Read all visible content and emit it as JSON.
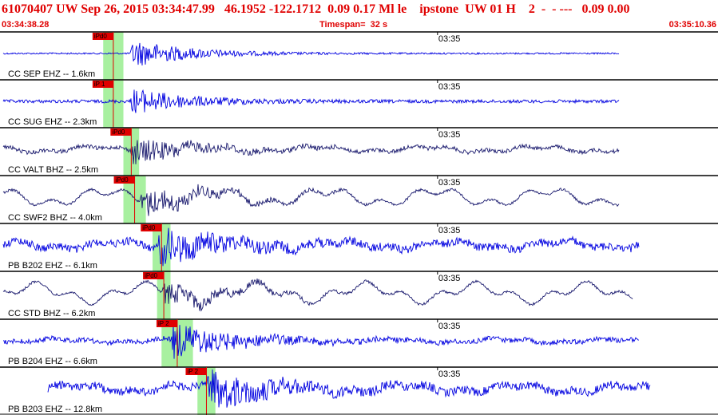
{
  "header": {
    "title": "61070407 UW Sep 26, 2015 03:34:47.99   46.1952 -122.1712  0.09 0.17 Ml le    ipstone  UW 01 H    2  -  - ---   0.09 0.00",
    "start_time": "03:34:38.28",
    "timespan": "Timespan=  32 s",
    "end_time": "03:35:10.36"
  },
  "colors": {
    "header_text": "#e00000",
    "trace_blue": "#0000e0",
    "trace_navy": "#1a1a6e",
    "pick_flag": "#e00000",
    "pick_window": "#a8f0a0"
  },
  "tick_label": "03:35",
  "traces": [
    {
      "label": "CC SEP EHZ -- 1.6km",
      "pick": "iPd0",
      "color": "blue",
      "window_start": 4.6,
      "window_end": 5.5,
      "onset": 5.8,
      "end": 27.6,
      "noise_amp": 1.0,
      "signal_amp": 18,
      "wander": 0
    },
    {
      "label": "CC SUG EHZ -- 2.3km",
      "pick": "iP 1",
      "color": "blue",
      "window_start": 4.6,
      "window_end": 5.5,
      "onset": 5.8,
      "end": 27.6,
      "noise_amp": 2.0,
      "signal_amp": 16,
      "wander": 0
    },
    {
      "label": "CC VALT BHZ -- 2.5km",
      "pick": "iPd0",
      "color": "navy",
      "window_start": 5.5,
      "window_end": 6.2,
      "onset": 5.8,
      "end": 27.6,
      "noise_amp": 2.5,
      "signal_amp": 16,
      "wander": 3
    },
    {
      "label": "CC SWF2 BHZ -- 4.0km",
      "pick": "iPd0",
      "color": "navy",
      "window_start": 5.5,
      "window_end": 6.5,
      "onset": 6.2,
      "end": 27.6,
      "noise_amp": 1.5,
      "signal_amp": 18,
      "wander": 8
    },
    {
      "label": "PB B202 EHZ -- 6.1km",
      "pick": "iPd0",
      "color": "blue",
      "window_start": 6.8,
      "window_end": 7.6,
      "onset": 7.0,
      "end": 28.5,
      "noise_amp": 5.0,
      "signal_amp": 22,
      "wander": 4
    },
    {
      "label": "CC STD BHZ -- 6.2km",
      "pick": "iPd0",
      "color": "navy",
      "window_start": 7.0,
      "window_end": 7.6,
      "onset": 7.2,
      "end": 28.2,
      "noise_amp": 1.5,
      "signal_amp": 14,
      "wander": 9
    },
    {
      "label": "PB B204 EHZ -- 6.6km",
      "pick": "iP 2",
      "color": "blue",
      "window_start": 7.2,
      "window_end": 8.6,
      "onset": 7.6,
      "end": 28.5,
      "noise_amp": 3.0,
      "signal_amp": 22,
      "wander": 2
    },
    {
      "label": "PB B203 EHZ -- 12.8km",
      "pick": "iP 2",
      "color": "blue",
      "window_start": 8.8,
      "window_end": 9.6,
      "onset": 9.2,
      "end": 29.0,
      "noise_amp": 5.0,
      "signal_amp": 24,
      "wander": 4
    }
  ]
}
